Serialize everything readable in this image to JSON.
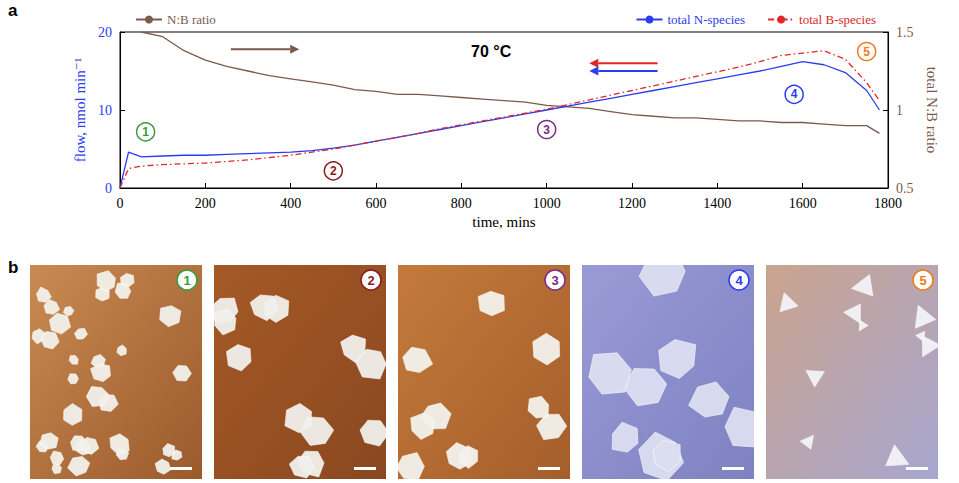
{
  "panel_labels": [
    "a",
    "b"
  ],
  "chart_data": {
    "type": "line",
    "x_label": "time, mins",
    "y_label": "flow, nmol min⁻¹",
    "y2_label": "total N:B ratio",
    "xlim": [
      0,
      1800
    ],
    "xticks": [
      0,
      200,
      400,
      600,
      800,
      1000,
      1200,
      1400,
      1600,
      1800
    ],
    "ylim": [
      0,
      20
    ],
    "yticks": [
      0,
      10,
      20
    ],
    "y2lim": [
      0.5,
      1.5
    ],
    "y2ticks": [
      0.5,
      1,
      1.5
    ],
    "legend": "top",
    "grid": false,
    "x": [
      0,
      20,
      50,
      100,
      150,
      200,
      250,
      300,
      350,
      400,
      450,
      500,
      550,
      600,
      650,
      700,
      750,
      800,
      850,
      900,
      950,
      1000,
      1050,
      1100,
      1150,
      1200,
      1250,
      1300,
      1350,
      1400,
      1450,
      1500,
      1550,
      1600,
      1650,
      1700,
      1750,
      1780
    ],
    "series": [
      {
        "name": "N:B ratio",
        "color": "#7b5a4e",
        "axis": "y2",
        "line_style": "solid",
        "values": [
          null,
          null,
          1.5,
          1.47,
          1.38,
          1.32,
          1.28,
          1.25,
          1.22,
          1.2,
          1.18,
          1.16,
          1.13,
          1.12,
          1.1,
          1.1,
          1.09,
          1.08,
          1.07,
          1.06,
          1.05,
          1.03,
          1.02,
          1.01,
          0.99,
          0.97,
          0.96,
          0.95,
          0.95,
          0.94,
          0.93,
          0.93,
          0.92,
          0.92,
          0.91,
          0.9,
          0.9,
          0.85
        ]
      },
      {
        "name": "total N-species",
        "color": "#2a3cf0",
        "line_style": "solid",
        "values": [
          0,
          4.6,
          4.0,
          4.1,
          4.2,
          4.2,
          4.3,
          4.4,
          4.5,
          4.6,
          4.8,
          5.1,
          5.5,
          6.0,
          6.5,
          7.0,
          7.5,
          8.0,
          8.5,
          9.0,
          9.5,
          10.0,
          10.5,
          11.0,
          11.5,
          12.0,
          12.5,
          13.0,
          13.5,
          14.0,
          14.5,
          15.0,
          15.6,
          16.2,
          15.8,
          14.8,
          12.5,
          10.0
        ]
      },
      {
        "name": "total B-species",
        "color": "#e0262a",
        "line_style": "dashdot",
        "values": [
          0,
          2.5,
          2.8,
          3.0,
          3.1,
          3.2,
          3.4,
          3.6,
          3.9,
          4.2,
          4.6,
          5.0,
          5.5,
          6.0,
          6.5,
          7.0,
          7.6,
          8.1,
          8.6,
          9.1,
          9.6,
          10.1,
          10.7,
          11.3,
          11.9,
          12.5,
          13.1,
          13.7,
          14.3,
          14.9,
          15.5,
          16.2,
          17.0,
          17.3,
          17.6,
          16.5,
          13.5,
          11.2
        ]
      }
    ],
    "annotations": [
      {
        "text": "70 °C",
        "x": 870,
        "y": 17.5
      },
      {
        "text": "1",
        "x": 60,
        "y": 7.2,
        "color": "#3a9a3a"
      },
      {
        "text": "2",
        "x": 500,
        "y": 2.2,
        "color": "#8b1a1a"
      },
      {
        "text": "3",
        "x": 1000,
        "y": 7.5,
        "color": "#7a2a8a"
      },
      {
        "text": "4",
        "x": 1580,
        "y": 12,
        "color": "#2a3cf0"
      },
      {
        "text": "5",
        "x": 1750,
        "y": 17.5,
        "color": "#f07a1a"
      }
    ]
  },
  "micrographs": [
    {
      "label": "1",
      "color": "#3a9a3a"
    },
    {
      "label": "2",
      "color": "#8b1a1a"
    },
    {
      "label": "3",
      "color": "#7a2a8a"
    },
    {
      "label": "4",
      "color": "#2a3cf0"
    },
    {
      "label": "5",
      "color": "#f07a1a"
    }
  ]
}
